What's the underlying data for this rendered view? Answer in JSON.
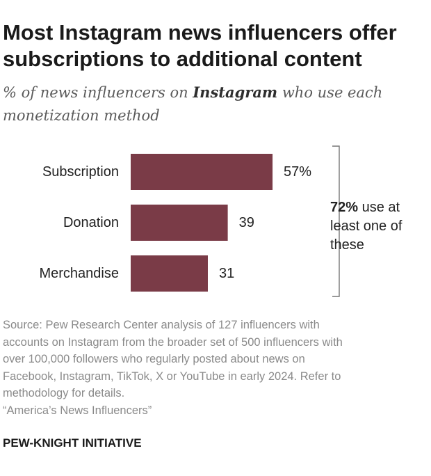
{
  "title_lines": [
    "Most Instagram news influencers offer",
    "subscriptions to additional content"
  ],
  "subtitle": {
    "prefix": "% of news influencers on ",
    "emphasis": "Instagram",
    "suffix": " who use each",
    "line2": "monetization method"
  },
  "chart_data": {
    "type": "bar",
    "orientation": "horizontal",
    "categories": [
      "Subscription",
      "Donation",
      "Merchandise"
    ],
    "values": [
      57,
      39,
      31
    ],
    "value_labels": [
      "57%",
      "39",
      "31"
    ],
    "bar_color": "#7a3b47",
    "annotation": {
      "value": "72%",
      "lines": [
        "use at",
        "least one of",
        "these"
      ]
    }
  },
  "note_lines": [
    "Source: Pew Research Center analysis of 127 influencers with",
    "accounts on Instagram from the broader set of 500 influencers with",
    "over 100,000 followers who regularly posted about news on",
    "Facebook, Instagram, TikTok, X or YouTube in early 2024. Refer to",
    "methodology for details.",
    "“America’s News Influencers”"
  ],
  "brand": "PEW-KNIGHT INITIATIVE"
}
